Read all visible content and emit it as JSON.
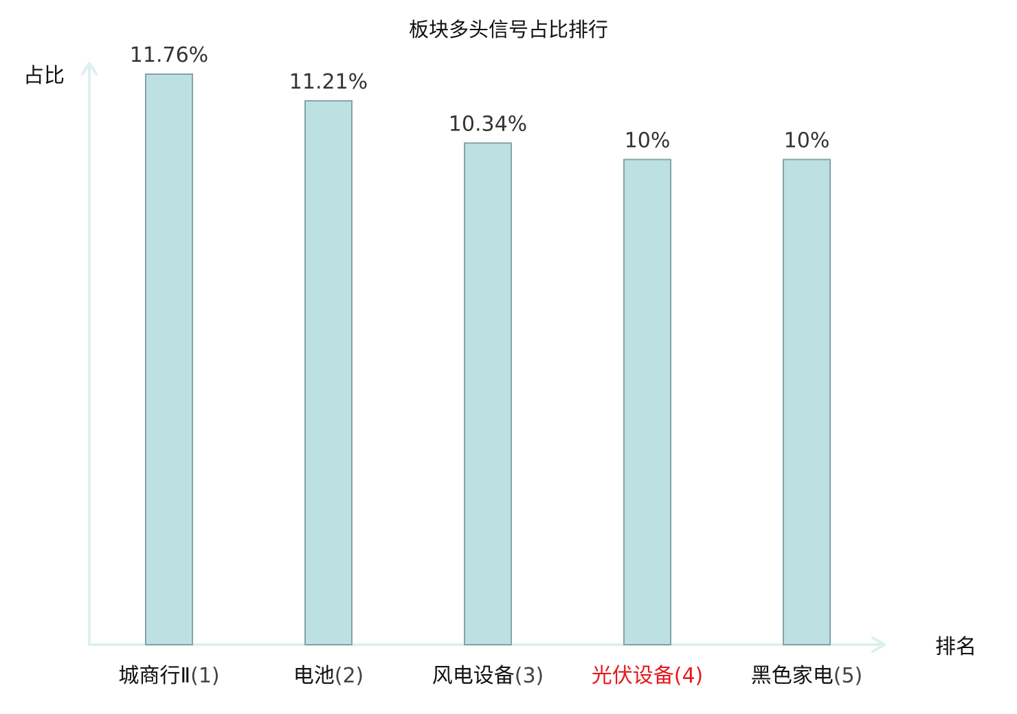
{
  "chart_data": {
    "type": "bar",
    "title": "板块多头信号占比排行",
    "xlabel": "排名",
    "ylabel": "占比",
    "ylim": [
      0,
      11.76
    ],
    "grid": false,
    "legend": "none",
    "categories": [
      {
        "name": "城商行Ⅱ",
        "rank": "(1)",
        "highlight": false
      },
      {
        "name": "电池",
        "rank": "(2)",
        "highlight": false
      },
      {
        "name": "风电设备",
        "rank": "(3)",
        "highlight": false
      },
      {
        "name": "光伏设备",
        "rank": "(4)",
        "highlight": true
      },
      {
        "name": "黑色家电",
        "rank": "(5)",
        "highlight": false
      }
    ],
    "values": [
      11.76,
      11.21,
      10.34,
      10,
      10
    ],
    "value_labels": [
      "11.76%",
      "11.21%",
      "10.34%",
      "10%",
      "10%"
    ]
  },
  "colors": {
    "bar_fill": "#bde1e2",
    "bar_stroke": "#84a3a5",
    "axis": "#dcf1ee",
    "highlight": "#e4191c"
  }
}
